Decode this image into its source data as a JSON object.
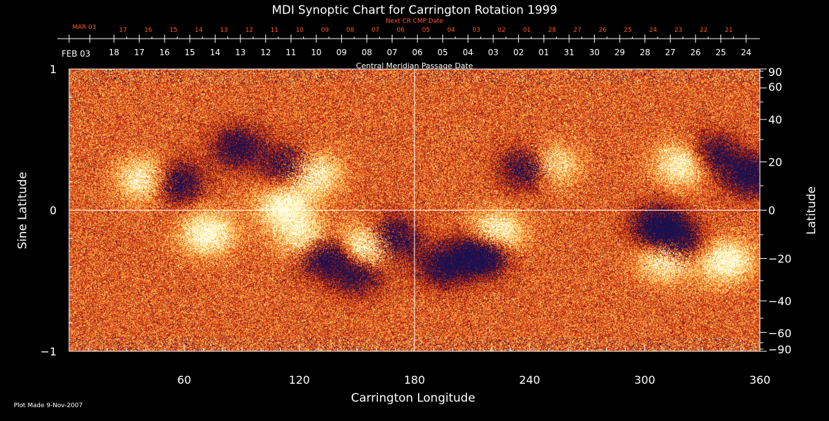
{
  "chart_data": {
    "type": "heatmap",
    "title": "MDI Synoptic Chart for Carrington Rotation 1999",
    "xlabel": "Carrington Longitude",
    "ylabel_left": "Sine Latitude",
    "ylabel_right": "Latitude",
    "top_axis_label": "Central Meridian Passage Date",
    "next_cr_label": "Next CR CMP Date",
    "xlim": [
      0,
      360
    ],
    "ylim": [
      -1,
      1
    ],
    "x_ticks": [
      60,
      120,
      180,
      240,
      300,
      360
    ],
    "y_ticks_left": [
      {
        "value": 1,
        "label": "1"
      },
      {
        "value": 0,
        "label": "0"
      },
      {
        "value": -1,
        "label": "−1"
      }
    ],
    "y_ticks_right": [
      90,
      60,
      40,
      20,
      0,
      -20,
      -40,
      -60,
      -90
    ],
    "y_tick_labels_right": [
      "90",
      "60",
      "40",
      "20",
      "0",
      "−20",
      "−40",
      "−60",
      "−90"
    ],
    "cmp_month_label": "FEB 03",
    "cmp_dates": [
      "18",
      "17",
      "16",
      "15",
      "14",
      "13",
      "12",
      "11",
      "10",
      "09",
      "08",
      "07",
      "06",
      "05",
      "04",
      "03",
      "02",
      "01",
      "31",
      "30",
      "29",
      "28",
      "27",
      "26",
      "25",
      "24"
    ],
    "next_cr_month_label": "MAR 03",
    "next_cr_dates": [
      "17",
      "16",
      "15",
      "14",
      "13",
      "12",
      "11",
      "10",
      "09",
      "08",
      "07",
      "06",
      "05",
      "04",
      "03",
      "02",
      "01",
      "28",
      "27",
      "26",
      "25",
      "24",
      "23",
      "22",
      "21"
    ],
    "footer": "Plot Made  9-Nov-2007",
    "grid_lines": {
      "vertical_at_longitude": 180,
      "horizontal_at_sine_latitude": 0
    },
    "colors": {
      "background_field": "#e8541c",
      "positive": "#ffffff",
      "negative": "#1a1050",
      "label_orange": "#ff5a28",
      "text": "#ffffff"
    },
    "regions": [
      {
        "lon": 124,
        "sinlat": 0.27,
        "polarity": "positive",
        "strength": 1.0
      },
      {
        "lon": 117,
        "sinlat": 0.3,
        "polarity": "negative",
        "strength": 0.9
      },
      {
        "lon": 112,
        "sinlat": 0.02,
        "polarity": "positive",
        "strength": 0.6
      },
      {
        "lon": 40,
        "sinlat": 0.22,
        "polarity": "positive",
        "strength": 0.6
      },
      {
        "lon": 55,
        "sinlat": 0.2,
        "polarity": "negative",
        "strength": 0.6
      },
      {
        "lon": 88,
        "sinlat": 0.45,
        "polarity": "negative",
        "strength": 0.5
      },
      {
        "lon": 157,
        "sinlat": -0.25,
        "polarity": "positive",
        "strength": 1.0
      },
      {
        "lon": 166,
        "sinlat": -0.21,
        "polarity": "negative",
        "strength": 0.9
      },
      {
        "lon": 131,
        "sinlat": -0.3,
        "polarity": "negative",
        "strength": 0.8
      },
      {
        "lon": 124,
        "sinlat": -0.22,
        "polarity": "positive",
        "strength": 0.7
      },
      {
        "lon": 72,
        "sinlat": -0.16,
        "polarity": "positive",
        "strength": 0.6
      },
      {
        "lon": 215,
        "sinlat": -0.3,
        "polarity": "negative",
        "strength": 0.9
      },
      {
        "lon": 222,
        "sinlat": -0.17,
        "polarity": "positive",
        "strength": 0.7
      },
      {
        "lon": 240,
        "sinlat": 0.3,
        "polarity": "negative",
        "strength": 0.7
      },
      {
        "lon": 250,
        "sinlat": 0.32,
        "polarity": "positive",
        "strength": 0.6
      },
      {
        "lon": 312,
        "sinlat": -0.33,
        "polarity": "positive",
        "strength": 1.0
      },
      {
        "lon": 316,
        "sinlat": -0.27,
        "polarity": "negative",
        "strength": 0.9
      },
      {
        "lon": 308,
        "sinlat": -0.12,
        "polarity": "negative",
        "strength": 0.7
      },
      {
        "lon": 342,
        "sinlat": -0.36,
        "polarity": "positive",
        "strength": 0.6
      },
      {
        "lon": 320,
        "sinlat": 0.33,
        "polarity": "positive",
        "strength": 0.6
      },
      {
        "lon": 335,
        "sinlat": 0.4,
        "polarity": "negative",
        "strength": 0.5
      },
      {
        "lon": 355,
        "sinlat": 0.25,
        "polarity": "negative",
        "strength": 0.6
      },
      {
        "lon": 195,
        "sinlat": -0.4,
        "polarity": "negative",
        "strength": 0.5
      },
      {
        "lon": 150,
        "sinlat": -0.45,
        "polarity": "negative",
        "strength": 0.5
      }
    ]
  }
}
